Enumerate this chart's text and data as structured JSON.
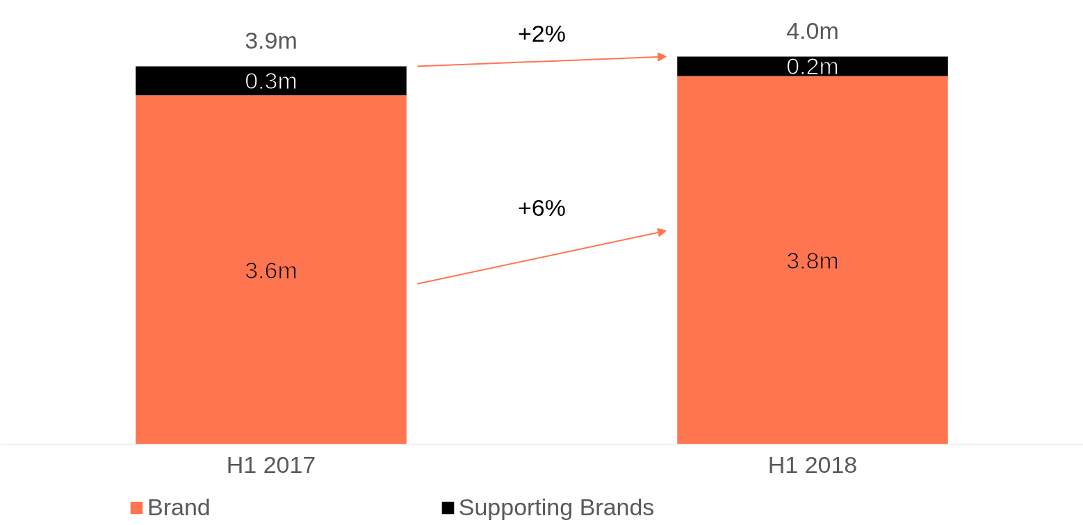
{
  "chart_data": {
    "type": "bar",
    "stacked": true,
    "categories": [
      "H1 2017",
      "H1 2018"
    ],
    "series": [
      {
        "name": "Brand",
        "color": "#ff7550",
        "values": [
          3.6,
          3.8
        ],
        "value_labels": [
          "3.6m",
          "3.8m"
        ]
      },
      {
        "name": "Supporting Brands",
        "color": "#000000",
        "values": [
          0.3,
          0.2
        ],
        "value_labels": [
          "0.3m",
          "0.2m"
        ]
      }
    ],
    "totals": [
      "3.9m",
      "4.0m"
    ],
    "annotations": [
      "+2%",
      "+6%"
    ],
    "legend": "bottom",
    "grid": false
  }
}
